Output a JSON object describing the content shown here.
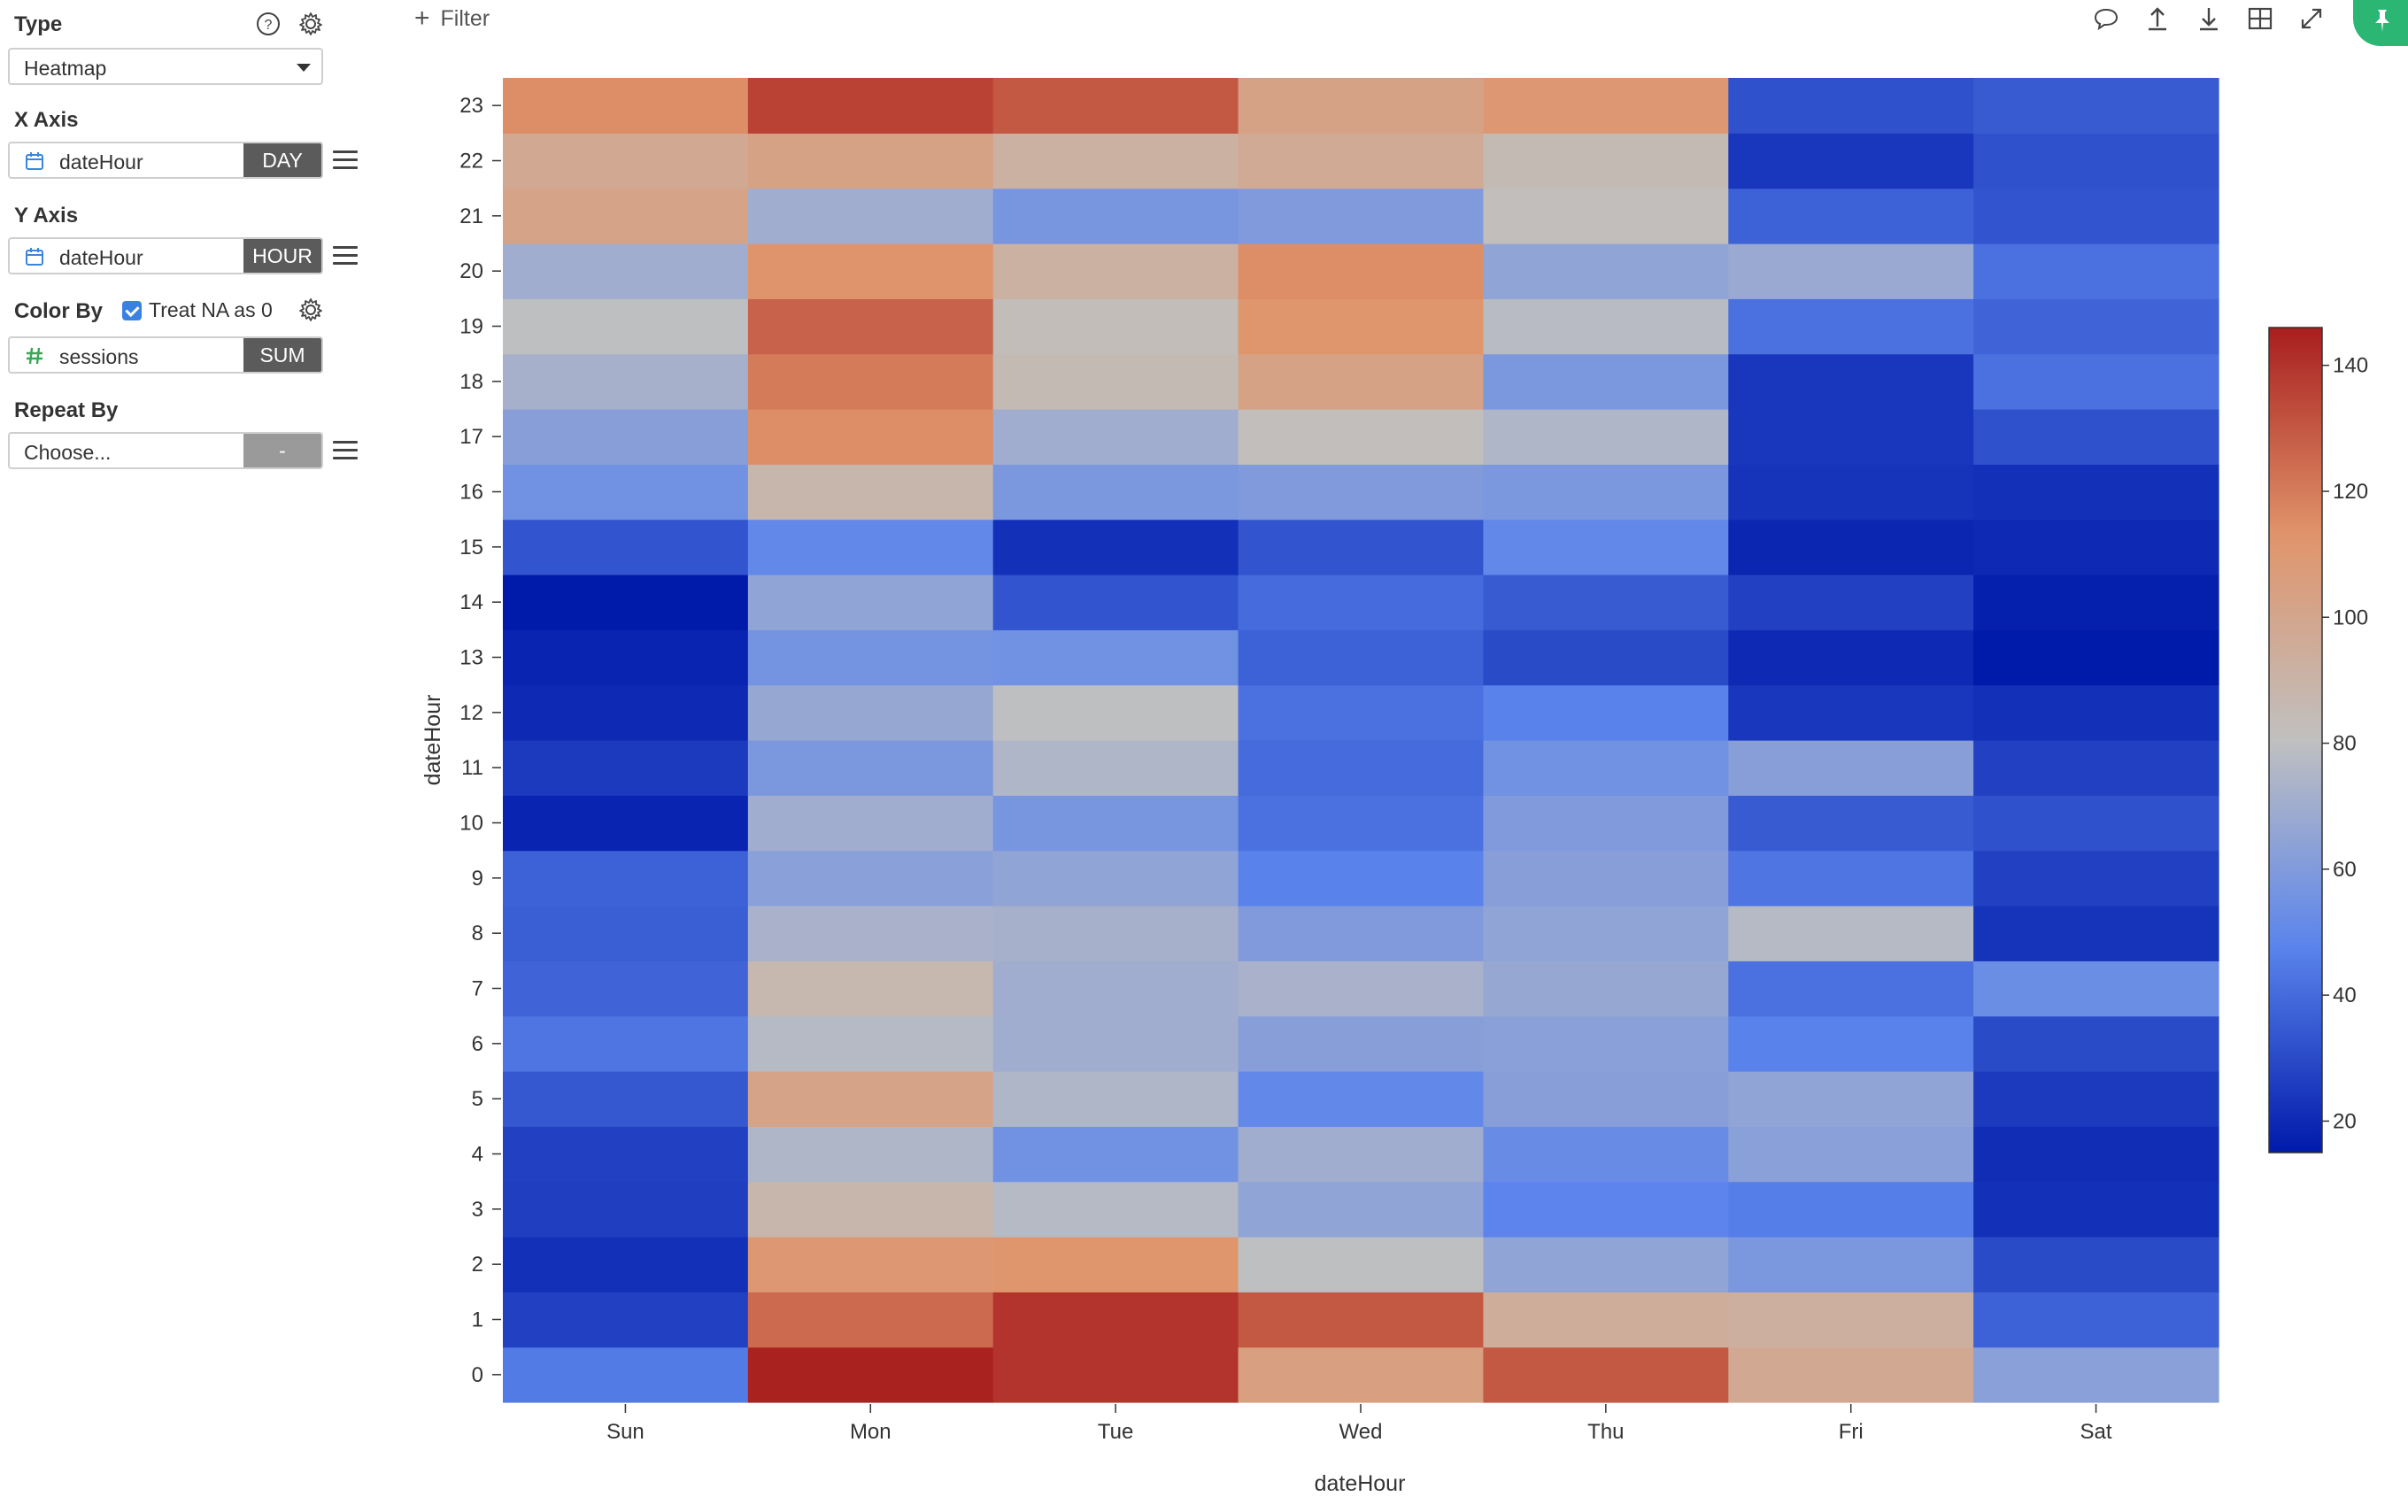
{
  "panel": {
    "type": {
      "label": "Type",
      "value": "Heatmap"
    },
    "x_axis": {
      "label": "X Axis",
      "field": "dateHour",
      "agg": "DAY"
    },
    "y_axis": {
      "label": "Y Axis",
      "field": "dateHour",
      "agg": "HOUR"
    },
    "color_by": {
      "label": "Color By",
      "treat_na_label": "Treat NA as 0",
      "treat_na": true,
      "field": "sessions",
      "agg": "SUM"
    },
    "repeat_by": {
      "label": "Repeat By",
      "placeholder": "Choose...",
      "agg": "-"
    }
  },
  "toolbar": {
    "filter_label": "Filter",
    "icons": [
      "comment-icon",
      "upload-icon",
      "download-icon",
      "table-icon",
      "expand-icon",
      "pin-icon"
    ]
  },
  "chart_data": {
    "type": "heatmap",
    "xlabel": "dateHour",
    "ylabel": "dateHour",
    "x": [
      "Sun",
      "Mon",
      "Tue",
      "Wed",
      "Thu",
      "Fri",
      "Sat"
    ],
    "y": [
      "0",
      "1",
      "2",
      "3",
      "4",
      "5",
      "6",
      "7",
      "8",
      "9",
      "10",
      "11",
      "12",
      "13",
      "14",
      "15",
      "16",
      "17",
      "18",
      "19",
      "20",
      "21",
      "22",
      "23"
    ],
    "values": [
      [
        45,
        145,
        140,
        105,
        130,
        98,
        63
      ],
      [
        27,
        125,
        140,
        130,
        95,
        93,
        37
      ],
      [
        22,
        110,
        112,
        80,
        65,
        58,
        30
      ],
      [
        26,
        88,
        77,
        65,
        48,
        46,
        22
      ],
      [
        27,
        75,
        55,
        70,
        52,
        63,
        21
      ],
      [
        34,
        102,
        75,
        50,
        62,
        65,
        25
      ],
      [
        43,
        77,
        70,
        62,
        63,
        47,
        30
      ],
      [
        38,
        87,
        70,
        73,
        67,
        42,
        53
      ],
      [
        36,
        73,
        72,
        60,
        65,
        77,
        23
      ],
      [
        37,
        63,
        65,
        47,
        62,
        43,
        27
      ],
      [
        18,
        70,
        57,
        42,
        60,
        35,
        32
      ],
      [
        25,
        58,
        75,
        40,
        55,
        62,
        27
      ],
      [
        20,
        67,
        80,
        42,
        47,
        24,
        22
      ],
      [
        18,
        56,
        55,
        37,
        30,
        20,
        13
      ],
      [
        10,
        65,
        33,
        40,
        35,
        27,
        17
      ],
      [
        33,
        50,
        22,
        33,
        50,
        19,
        20
      ],
      [
        55,
        88,
        58,
        60,
        58,
        23,
        22
      ],
      [
        62,
        115,
        70,
        82,
        75,
        24,
        32
      ],
      [
        72,
        120,
        85,
        103,
        58,
        24,
        42
      ],
      [
        80,
        127,
        83,
        112,
        78,
        42,
        38
      ],
      [
        70,
        113,
        92,
        115,
        65,
        68,
        42
      ],
      [
        102,
        70,
        57,
        60,
        82,
        37,
        33
      ],
      [
        98,
        103,
        92,
        97,
        85,
        24,
        32
      ],
      [
        115,
        136,
        130,
        103,
        110,
        32,
        35
      ]
    ],
    "colorbar": {
      "min": 15,
      "max": 146,
      "ticks": [
        20,
        40,
        60,
        80,
        100,
        120,
        140
      ]
    },
    "colors": {
      "low": "#001aaa",
      "mid": "#c0c0c0",
      "high": "#a81e1e"
    }
  }
}
